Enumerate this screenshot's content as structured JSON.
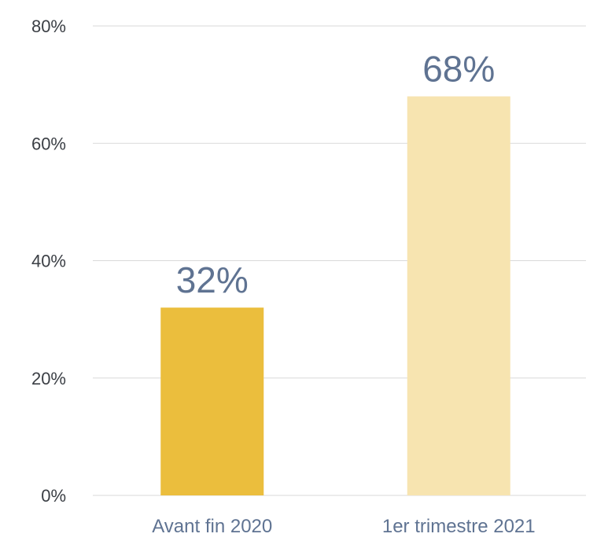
{
  "chart_data": {
    "type": "bar",
    "title": "",
    "xlabel": "",
    "ylabel": "",
    "categories": [
      "Avant fin 2020",
      "1er trimestre 2021"
    ],
    "values": [
      32,
      68
    ],
    "value_labels": [
      "32%",
      "68%"
    ],
    "ylim": [
      0,
      80
    ],
    "yticks": [
      0,
      20,
      40,
      60,
      80
    ],
    "ytick_labels": [
      "0%",
      "20%",
      "40%",
      "60%",
      "80%"
    ],
    "grid": true,
    "legend": "none",
    "colors": [
      "#ebbe3d",
      "#f7e4b0"
    ],
    "label_color": "#5f7392"
  }
}
